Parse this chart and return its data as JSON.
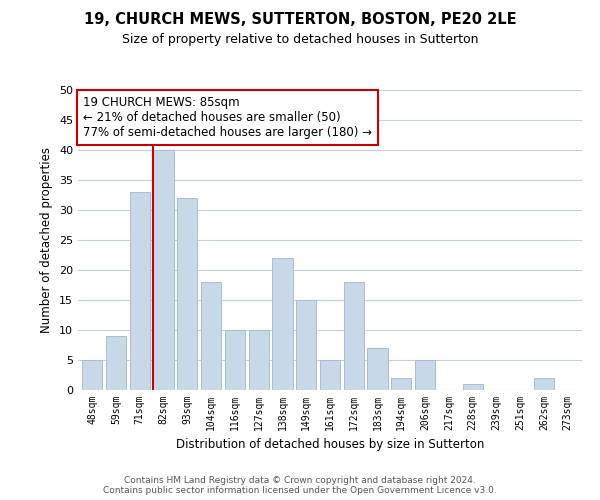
{
  "title": "19, CHURCH MEWS, SUTTERTON, BOSTON, PE20 2LE",
  "subtitle": "Size of property relative to detached houses in Sutterton",
  "xlabel": "Distribution of detached houses by size in Sutterton",
  "ylabel": "Number of detached properties",
  "categories": [
    "48sqm",
    "59sqm",
    "71sqm",
    "82sqm",
    "93sqm",
    "104sqm",
    "116sqm",
    "127sqm",
    "138sqm",
    "149sqm",
    "161sqm",
    "172sqm",
    "183sqm",
    "194sqm",
    "206sqm",
    "217sqm",
    "228sqm",
    "239sqm",
    "251sqm",
    "262sqm",
    "273sqm"
  ],
  "values": [
    5,
    9,
    33,
    40,
    32,
    18,
    10,
    10,
    22,
    15,
    5,
    18,
    7,
    2,
    5,
    0,
    1,
    0,
    0,
    2,
    0
  ],
  "bar_color": "#c8d8e8",
  "bar_edge_color": "#a8bece",
  "highlight_index": 3,
  "highlight_line_color": "#cc0000",
  "ylim": [
    0,
    50
  ],
  "yticks": [
    0,
    5,
    10,
    15,
    20,
    25,
    30,
    35,
    40,
    45,
    50
  ],
  "annotation_line1": "19 CHURCH MEWS: 85sqm",
  "annotation_line2": "← 21% of detached houses are smaller (50)",
  "annotation_line3": "77% of semi-detached houses are larger (180) →",
  "annotation_box_color": "#ffffff",
  "annotation_box_edge_color": "#cc0000",
  "footer_line1": "Contains HM Land Registry data © Crown copyright and database right 2024.",
  "footer_line2": "Contains public sector information licensed under the Open Government Licence v3.0.",
  "background_color": "#ffffff",
  "grid_color": "#c0d0e0"
}
